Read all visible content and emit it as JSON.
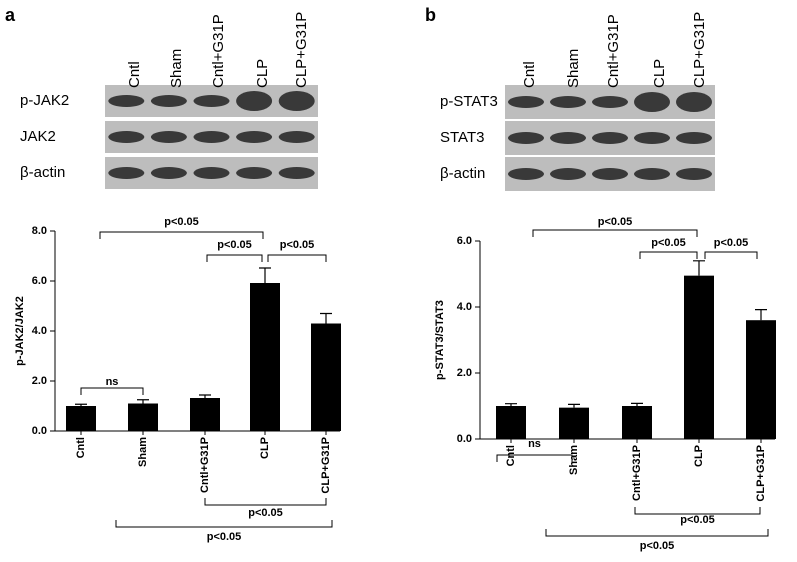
{
  "chart_data": [
    {
      "type": "bar",
      "panel": "a",
      "lanes": [
        "Cntl",
        "Sham",
        "Cntl+G31P",
        "CLP",
        "CLP+G31P"
      ],
      "blot_rows": [
        "p-JAK2",
        "JAK2",
        "β-actin"
      ],
      "ylabel": "p-JAK2/JAK2",
      "categories": [
        "Cntl",
        "Sham",
        "Cntl+G31P",
        "CLP",
        "CLP+G31P"
      ],
      "values": [
        1.0,
        1.1,
        1.32,
        5.92,
        4.3
      ],
      "errors": [
        0.07,
        0.15,
        0.12,
        0.6,
        0.4
      ],
      "color": "#000000",
      "ylim": [
        0,
        8
      ],
      "yticks": [
        {
          "value": 0,
          "label": "0.0"
        },
        {
          "value": 2,
          "label": "2.0"
        },
        {
          "value": 4,
          "label": "4.0"
        },
        {
          "value": 6,
          "label": "6.0"
        },
        {
          "value": 8,
          "label": "8.0"
        }
      ],
      "annotations": [
        "ns",
        "p<0.05",
        "p<0.05",
        "p<0.05",
        "p<0.05",
        "p<0.05"
      ]
    },
    {
      "type": "bar",
      "panel": "b",
      "lanes": [
        "Cntl",
        "Sham",
        "Cntl+G31P",
        "CLP",
        "CLP+G31P"
      ],
      "blot_rows": [
        "p-STAT3",
        "STAT3",
        "β-actin"
      ],
      "ylabel": "p-STAT3/STAT3",
      "categories": [
        "Cntl",
        "Sham",
        "Cntl+G31P",
        "CLP",
        "CLP+G31P"
      ],
      "values": [
        1.0,
        0.95,
        1.0,
        4.95,
        3.6
      ],
      "errors": [
        0.07,
        0.1,
        0.08,
        0.45,
        0.32
      ],
      "color": "#000000",
      "ylim": [
        0,
        6
      ],
      "yticks": [
        {
          "value": 0,
          "label": "0.0"
        },
        {
          "value": 2,
          "label": "2.0"
        },
        {
          "value": 4,
          "label": "4.0"
        },
        {
          "value": 6,
          "label": "6.0"
        }
      ],
      "annotations": [
        "ns",
        "p<0.05",
        "p<0.05",
        "p<0.05",
        "p<0.05",
        "p<0.05"
      ]
    }
  ]
}
